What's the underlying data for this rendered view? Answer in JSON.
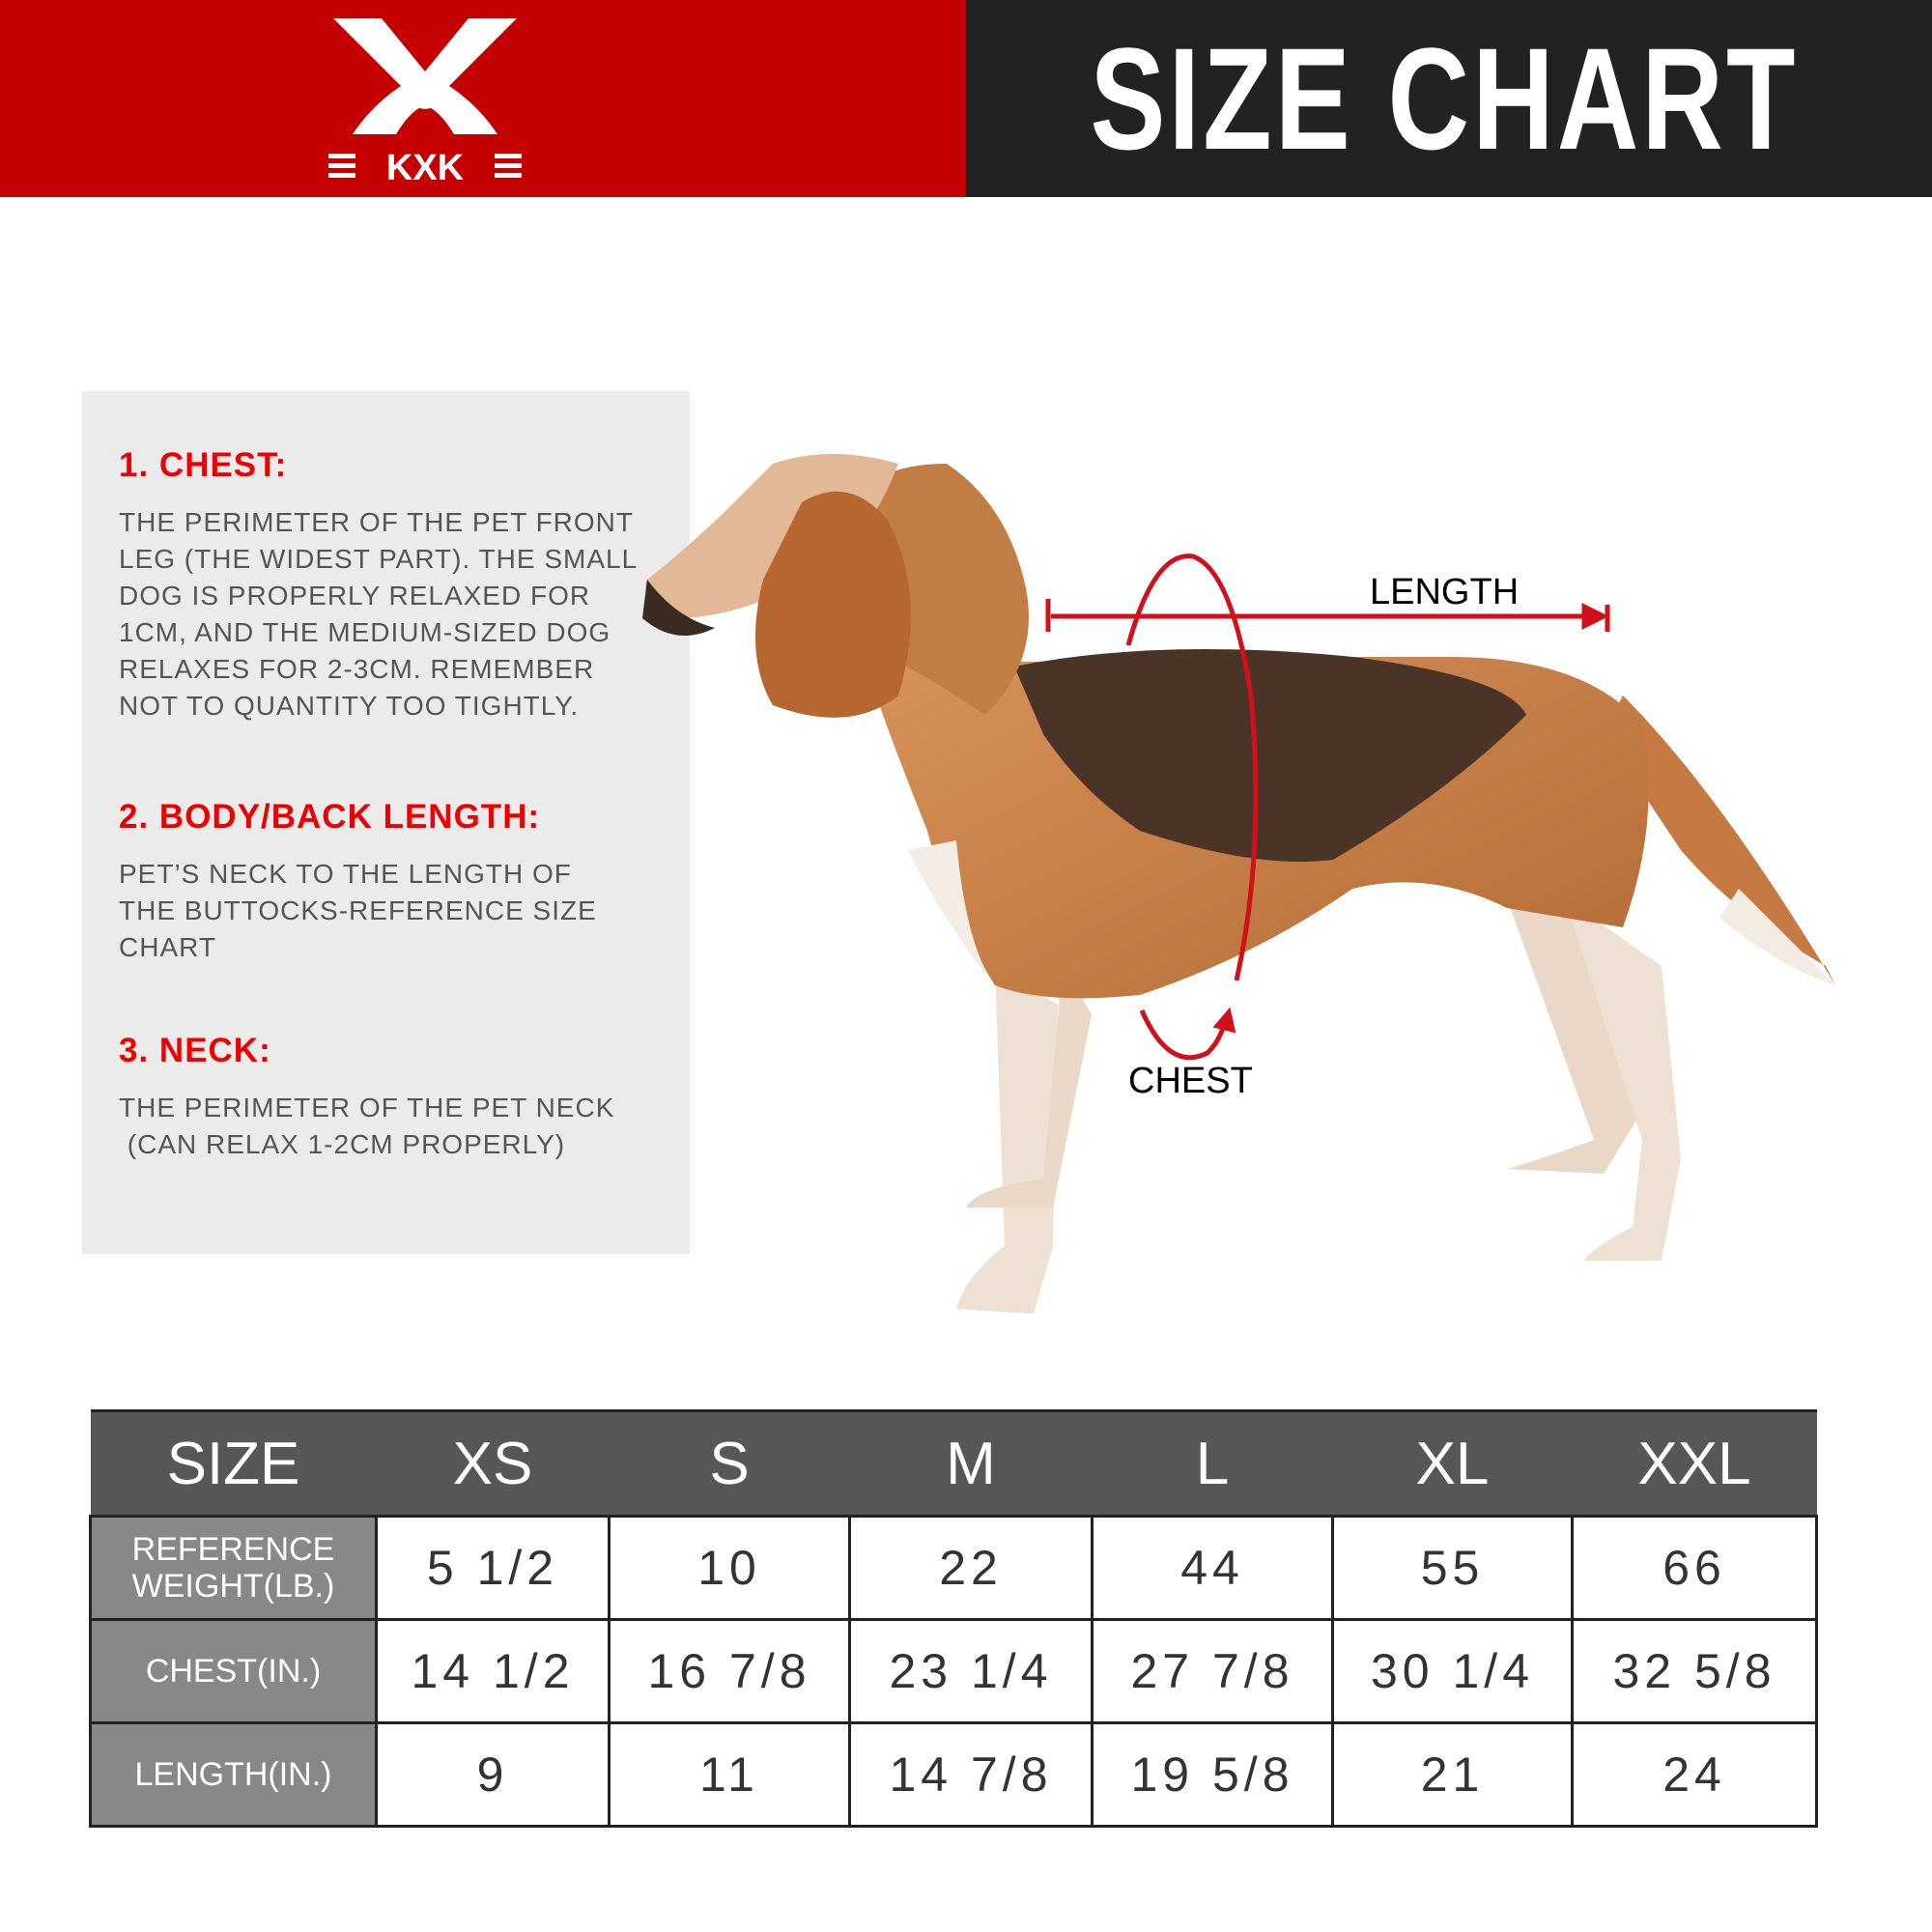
{
  "header": {
    "title": "SIZE CHART",
    "brand": "KXK",
    "colors": {
      "brand_red": "#c40000",
      "dark": "#222222"
    }
  },
  "guide": {
    "sections": [
      {
        "heading": "1. CHEST:",
        "lines": [
          "THE PERIMETER OF THE PET FRONT",
          "LEG (THE WIDEST PART). THE SMALL",
          "DOG IS PROPERLY RELAXED FOR",
          "1CM, AND THE MEDIUM-SIZED DOG",
          "RELAXES FOR 2-3CM. REMEMBER",
          "NOT TO QUANTITY TOO TIGHTLY."
        ]
      },
      {
        "heading": "2. BODY/BACK LENGTH:",
        "lines": [
          "PET’S NECK TO THE LENGTH OF",
          "THE BUTTOCKS-REFERENCE SIZE",
          "CHART"
        ]
      },
      {
        "heading": "3. NECK:",
        "lines": [
          "THE PERIMETER OF THE PET NECK",
          " (CAN RELAX 1-2CM PROPERLY)"
        ]
      }
    ]
  },
  "diagram": {
    "length_label": "LENGTH",
    "chest_label": "CHEST"
  },
  "table": {
    "headers": [
      "SIZE",
      "XS",
      "S",
      "M",
      "L",
      "XL",
      "XXL"
    ],
    "rows": [
      {
        "label": "REFERENCE WEIGHT(LB.)",
        "values": [
          "5 1/2",
          "10",
          "22",
          "44",
          "55",
          "66"
        ]
      },
      {
        "label": "CHEST(IN.)",
        "values": [
          "14 1/2",
          "16 7/8",
          "23 1/4",
          "27 7/8",
          "30 1/4",
          "32 5/8"
        ]
      },
      {
        "label": "LENGTH(IN.)",
        "values": [
          "9",
          "11",
          "14 7/8",
          "19 5/8",
          "21",
          "24"
        ]
      }
    ]
  }
}
